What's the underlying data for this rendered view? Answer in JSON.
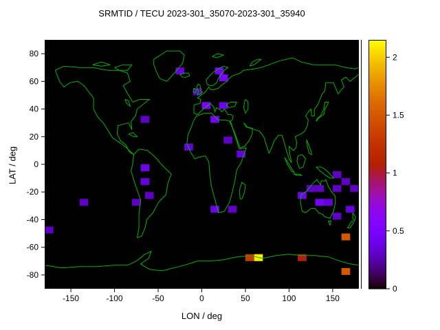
{
  "colors": {
    "plot_background": "#000000",
    "coastline_green": "#00b400",
    "frame": "#000000"
  },
  "chart_data": {
    "type": "heatmap",
    "title": "SRMTID / TECU 2023-301_35070-2023-301_35940",
    "xlabel": "LON / deg",
    "ylabel": "LAT / deg",
    "xlim": [
      -180,
      180
    ],
    "ylim": [
      -90,
      90
    ],
    "xticks": [
      -150,
      -100,
      -50,
      0,
      50,
      100,
      150
    ],
    "yticks": [
      -80,
      -60,
      -40,
      -20,
      0,
      20,
      40,
      60,
      80
    ],
    "grid": false,
    "legend": "colorbar-right",
    "colorbar_range": [
      0,
      2.15
    ],
    "colorbar_ticks": [
      0,
      0.5,
      1,
      1.5,
      2
    ],
    "palette": "gnuplot pm3d (black - violet - red - orange - yellow)",
    "basemap": "world coastlines, green outlines on black",
    "cell_size": {
      "lon": 10,
      "lat": 5
    },
    "cells": [
      {
        "lon": -30,
        "lat": 65,
        "value": 0.35
      },
      {
        "lon": 15,
        "lat": 65,
        "value": 0.45
      },
      {
        "lon": 20,
        "lat": 60,
        "value": 0.5
      },
      {
        "lon": -10,
        "lat": 50,
        "value": 0.3
      },
      {
        "lon": -70,
        "lat": 30,
        "value": 0.3
      },
      {
        "lon": 0,
        "lat": 40,
        "value": 0.5
      },
      {
        "lon": 20,
        "lat": 40,
        "value": 0.4
      },
      {
        "lon": 10,
        "lat": 30,
        "value": 0.45
      },
      {
        "lon": 25,
        "lat": 15,
        "value": 0.3
      },
      {
        "lon": -20,
        "lat": 10,
        "value": 0.35
      },
      {
        "lon": 40,
        "lat": 5,
        "value": 0.35
      },
      {
        "lon": -70,
        "lat": -5,
        "value": 0.4
      },
      {
        "lon": -70,
        "lat": -15,
        "value": 0.35
      },
      {
        "lon": -65,
        "lat": -25,
        "value": 0.3
      },
      {
        "lon": -80,
        "lat": -30,
        "value": 0.3
      },
      {
        "lon": -140,
        "lat": -30,
        "value": 0.3
      },
      {
        "lon": -180,
        "lat": -50,
        "value": 0.3
      },
      {
        "lon": 10,
        "lat": -35,
        "value": 0.4
      },
      {
        "lon": 30,
        "lat": -35,
        "value": 0.3
      },
      {
        "lon": 110,
        "lat": -25,
        "value": 0.4
      },
      {
        "lon": 120,
        "lat": -20,
        "value": 0.3
      },
      {
        "lon": 130,
        "lat": -20,
        "value": 0.3
      },
      {
        "lon": 130,
        "lat": -30,
        "value": 0.45
      },
      {
        "lon": 140,
        "lat": -30,
        "value": 0.35
      },
      {
        "lon": 150,
        "lat": -20,
        "value": 0.3
      },
      {
        "lon": 150,
        "lat": -10,
        "value": 0.3
      },
      {
        "lon": 160,
        "lat": -15,
        "value": 0.3
      },
      {
        "lon": 170,
        "lat": -20,
        "value": 0.3
      },
      {
        "lon": 165,
        "lat": -35,
        "value": 0.35
      },
      {
        "lon": 150,
        "lat": -40,
        "value": 0.3
      },
      {
        "lon": 160,
        "lat": -55,
        "value": 1.5
      },
      {
        "lon": 50,
        "lat": -70,
        "value": 1.3
      },
      {
        "lon": 60,
        "lat": -70,
        "value": 2.1
      },
      {
        "lon": 110,
        "lat": -70,
        "value": 1.05
      },
      {
        "lon": 160,
        "lat": -80,
        "value": 1.5
      }
    ]
  }
}
